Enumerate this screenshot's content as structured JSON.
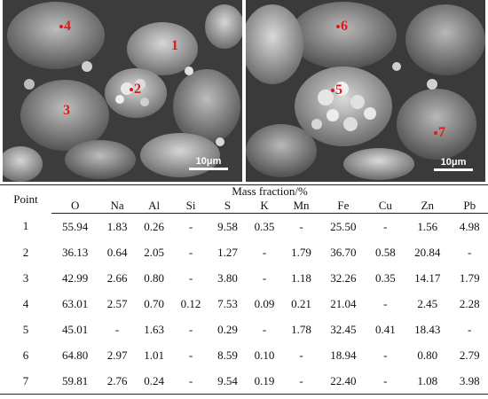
{
  "images": {
    "left_points": [
      "4",
      "1",
      "2",
      "3"
    ],
    "right_points": [
      "6",
      "5",
      "7"
    ],
    "scale_label": "10μm"
  },
  "table": {
    "point_header": "Point",
    "group_header": "Mass fraction/%",
    "columns": [
      "O",
      "Na",
      "Al",
      "Si",
      "S",
      "K",
      "Mn",
      "Fe",
      "Cu",
      "Zn",
      "Pb"
    ],
    "rows": [
      [
        "1",
        "55.94",
        "1.83",
        "0.26",
        "-",
        "9.58",
        "0.35",
        "-",
        "25.50",
        "-",
        "1.56",
        "4.98"
      ],
      [
        "2",
        "36.13",
        "0.64",
        "2.05",
        "-",
        "1.27",
        "-",
        "1.79",
        "36.70",
        "0.58",
        "20.84",
        "-"
      ],
      [
        "3",
        "42.99",
        "2.66",
        "0.80",
        "-",
        "3.80",
        "-",
        "1.18",
        "32.26",
        "0.35",
        "14.17",
        "1.79"
      ],
      [
        "4",
        "63.01",
        "2.57",
        "0.70",
        "0.12",
        "7.53",
        "0.09",
        "0.21",
        "21.04",
        "-",
        "2.45",
        "2.28"
      ],
      [
        "5",
        "45.01",
        "-",
        "1.63",
        "-",
        "0.29",
        "-",
        "1.78",
        "32.45",
        "0.41",
        "18.43",
        "-"
      ],
      [
        "6",
        "64.80",
        "2.97",
        "1.01",
        "-",
        "8.59",
        "0.10",
        "-",
        "18.94",
        "-",
        "0.80",
        "2.79"
      ],
      [
        "7",
        "59.81",
        "2.76",
        "0.24",
        "-",
        "9.54",
        "0.19",
        "-",
        "22.40",
        "-",
        "1.08",
        "3.98"
      ]
    ]
  },
  "colors": {
    "marker": "#e01818",
    "sem_background": "#4a4a4a"
  }
}
